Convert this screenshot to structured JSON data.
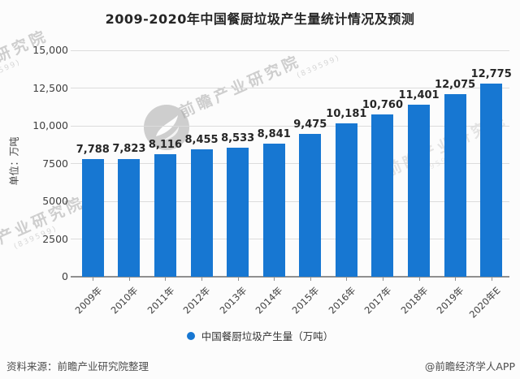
{
  "title": "2009-2020年中国餐厨垃圾产生量统计情况及预测",
  "chart_data": {
    "type": "bar",
    "title": "2009-2020年中国餐厨垃圾产生量统计情况及预测",
    "ylabel": "单位：万吨",
    "xlabel": "",
    "categories": [
      "2009年",
      "2010年",
      "2011年",
      "2012年",
      "2013年",
      "2014年",
      "2015年",
      "2016年",
      "2017年",
      "2018年",
      "2019年",
      "2020年E"
    ],
    "values": [
      7788,
      7823,
      8116,
      8455,
      8533,
      8841,
      9475,
      10181,
      10760,
      11401,
      12075,
      12775
    ],
    "value_labels": [
      "7,788",
      "7,823",
      "8,116",
      "8,455",
      "8,533",
      "8,841",
      "9,475",
      "10,181",
      "10,760",
      "11,401",
      "12,075",
      "12,775"
    ],
    "ylim": [
      0,
      15000
    ],
    "ytick_values": [
      0,
      2500,
      5000,
      7500,
      10000,
      12500,
      15000
    ],
    "ytick_labels": [
      "0",
      "2500",
      "5000",
      "7500",
      "10,000",
      "12,500",
      "15,000"
    ],
    "grid": true,
    "legend_position": "bottom",
    "legend_label": "中国餐厨垃圾产生量（万吨）",
    "bar_color": "#1777d2"
  },
  "legend": {
    "label": "中国餐厨垃圾产生量（万吨）",
    "marker_color": "#1777d2"
  },
  "footer": {
    "source": "资料来源：前瞻产业研究院整理",
    "credit": "@前瞻经济学人APP"
  },
  "watermark": {
    "text": "前瞻产业研究院",
    "subtext": "(839599)"
  },
  "colors": {
    "bar": "#1777d2",
    "grid": "#dcdcdc",
    "axis": "#8f8f8f",
    "title_text": "#262626",
    "tick_text": "#404040",
    "footer_text": "#4d4d4d"
  }
}
